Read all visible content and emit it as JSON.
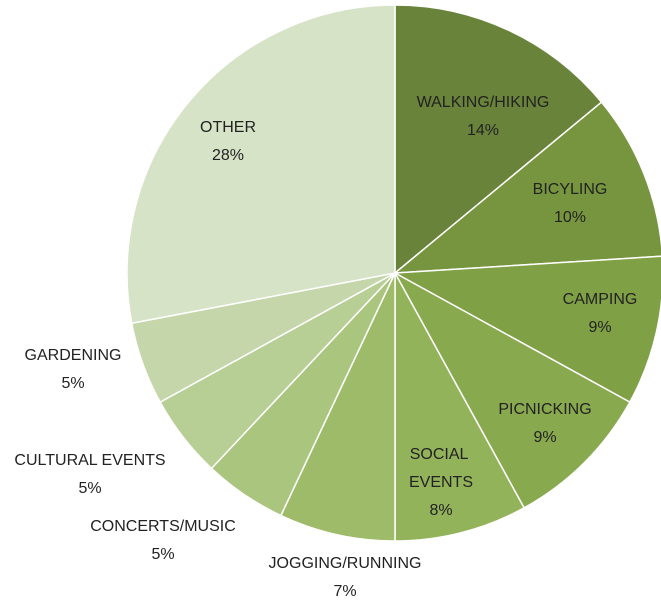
{
  "chart_data": {
    "type": "pie",
    "categories": [
      "WALKING/HIKING",
      "BICYLING",
      "CAMPING",
      "PICNICKING",
      "SOCIAL EVENTS",
      "JOGGING/RUNNING",
      "CONCERTS/MUSIC",
      "CULTURAL EVENTS",
      "GARDENING",
      "OTHER"
    ],
    "values": [
      14,
      10,
      9,
      9,
      8,
      7,
      5,
      5,
      5,
      28
    ],
    "value_labels": [
      "14%",
      "10%",
      "9%",
      "9%",
      "8%",
      "7%",
      "5%",
      "5%",
      "5%",
      "28%"
    ],
    "colors": [
      "#6a833b",
      "#77953f",
      "#80a046",
      "#89a94f",
      "#93b35b",
      "#9dbb69",
      "#aac57e",
      "#b7ce94",
      "#c5d7aa",
      "#d7e3c7"
    ]
  }
}
